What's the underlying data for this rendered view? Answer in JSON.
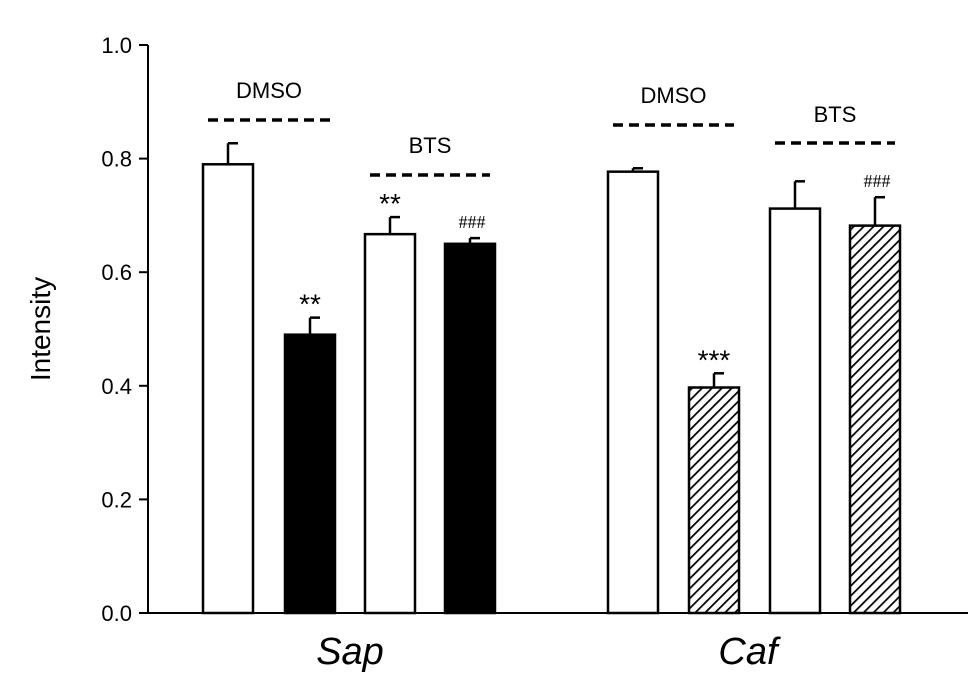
{
  "chart_data": {
    "type": "bar",
    "ylabel": "Intensity",
    "ylim": [
      0,
      1.0
    ],
    "yticks": [
      "0.0",
      "0.2",
      "0.4",
      "0.6",
      "0.8",
      "1.0"
    ],
    "groups": [
      {
        "label": "Sap",
        "bars": [
          {
            "value": 0.79,
            "error": 0.037,
            "fill": "white",
            "sig": ""
          },
          {
            "value": 0.49,
            "error": 0.03,
            "fill": "black",
            "sig": "**"
          },
          {
            "value": 0.667,
            "error": 0.03,
            "fill": "white",
            "sig": "**"
          },
          {
            "value": 0.65,
            "error": 0.01,
            "fill": "black",
            "sig": "###"
          }
        ],
        "treatments": [
          {
            "label": "DMSO",
            "bars": [
              0,
              1
            ]
          },
          {
            "label": "BTS",
            "bars": [
              2,
              3
            ]
          }
        ]
      },
      {
        "label": "Caf",
        "bars": [
          {
            "value": 0.777,
            "error": 0.006,
            "fill": "white",
            "sig": ""
          },
          {
            "value": 0.397,
            "error": 0.025,
            "fill": "hatched",
            "sig": "***"
          },
          {
            "value": 0.712,
            "error": 0.048,
            "fill": "white",
            "sig": ""
          },
          {
            "value": 0.682,
            "error": 0.05,
            "fill": "hatched",
            "sig": "###"
          }
        ],
        "treatments": [
          {
            "label": "DMSO",
            "bars": [
              0,
              1
            ]
          },
          {
            "label": "BTS",
            "bars": [
              2,
              3
            ]
          }
        ]
      }
    ],
    "colors": {
      "black": "#000000",
      "white": "#ffffff"
    },
    "grid": false,
    "legend": "none"
  }
}
